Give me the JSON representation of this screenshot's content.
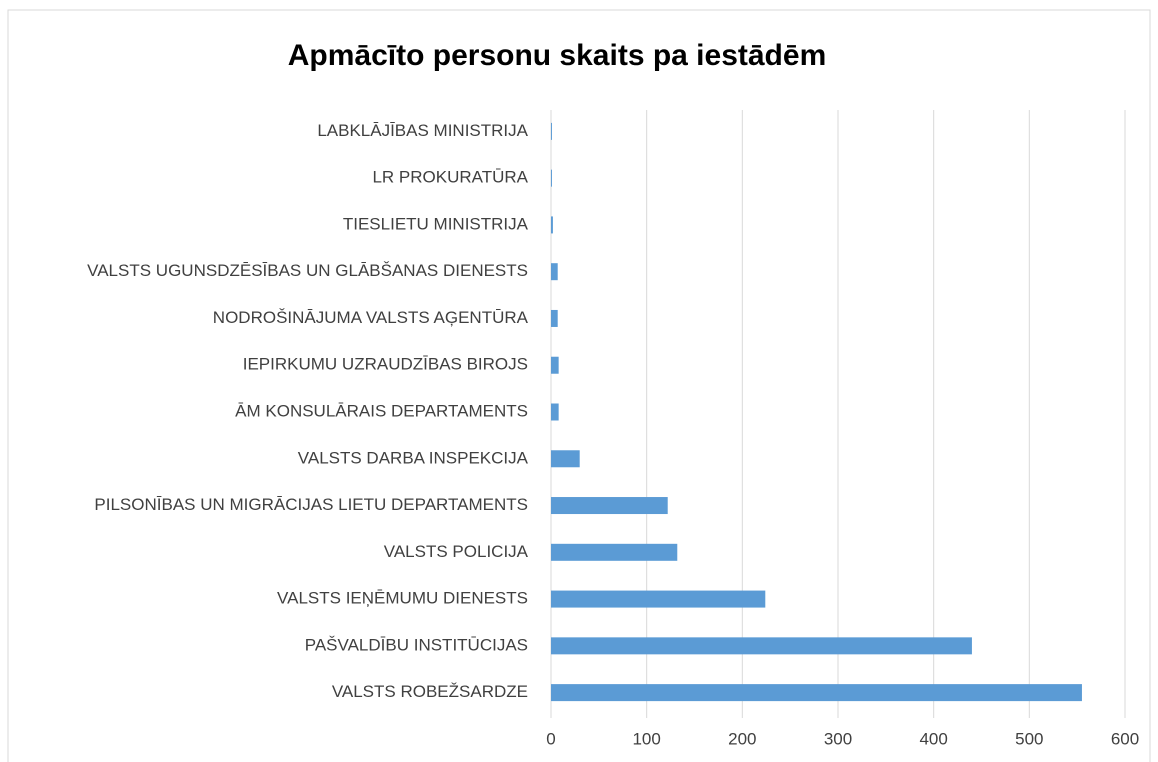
{
  "chart_data": {
    "type": "bar",
    "orientation": "horizontal",
    "title": "Apmācīto personu skaits pa iestādēm",
    "categories": [
      "LABKLĀJĪBAS MINISTRIJA",
      "LR PROKURATŪRA",
      "TIESLIETU MINISTRIJA",
      "VALSTS UGUNSDZĒSĪBAS UN GLĀBŠANAS DIENESTS",
      "NODROŠINĀJUMA VALSTS AĢENTŪRA",
      "IEPIRKUMU UZRAUDZĪBAS BIROJS",
      "ĀM KONSULĀRAIS DEPARTAMENTS",
      "VALSTS DARBA INSPEKCIJA",
      "PILSONĪBAS UN MIGRĀCIJAS LIETU DEPARTAMENTS",
      "VALSTS POLICIJA",
      "VALSTS IEŅĒMUMU DIENESTS",
      "PAŠVALDĪBU INSTITŪCIJAS",
      "VALSTS ROBEŽSARDZE"
    ],
    "values": [
      1,
      1,
      2,
      7,
      7,
      8,
      8,
      30,
      122,
      132,
      224,
      440,
      555
    ],
    "color": "#5b9bd5",
    "xlim": [
      0,
      600
    ],
    "xticks": [
      0,
      100,
      200,
      300,
      400,
      500,
      600
    ],
    "grid": true
  }
}
